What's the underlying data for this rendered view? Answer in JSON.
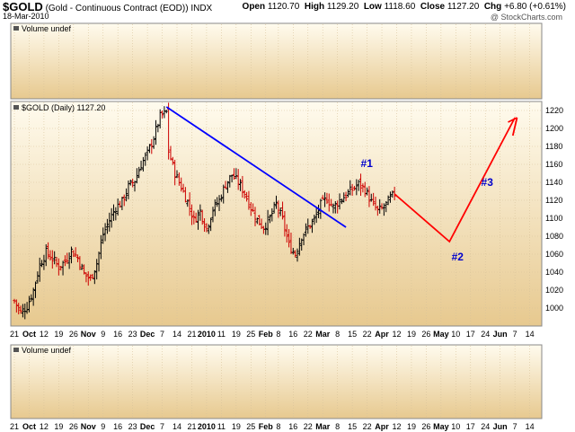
{
  "header": {
    "symbol": "$GOLD",
    "description": "(Gold - Continuous Contract (EOD))",
    "exchange": "INDX",
    "date": "18-Mar-2010",
    "open_label": "Open",
    "open": "1120.70",
    "high_label": "High",
    "high": "1129.20",
    "low_label": "Low",
    "low": "1118.60",
    "close_label": "Close",
    "close": "1127.20",
    "chg_label": "Chg",
    "chg": "+6.80 (+0.61%)",
    "watermark": "@ StockCharts.com"
  },
  "colors": {
    "panel_bg_top": "#fffbee",
    "panel_bg_bottom": "#e7c98f",
    "grid": "#d7c29a",
    "up_bar": "#000000",
    "down_bar": "#cc0000",
    "trendline": "#0000ff",
    "projection": "#ff0000",
    "annotation": "#0000cc"
  },
  "chart_data": {
    "type": "ohlc",
    "panels": [
      {
        "name": "volume-top",
        "label": "Volume undef"
      },
      {
        "name": "price",
        "label": "$GOLD (Daily) 1127.20"
      },
      {
        "name": "volume-bottom",
        "label": "Volume undef"
      }
    ],
    "ylim": [
      980,
      1230
    ],
    "y_ticks": [
      1000,
      1020,
      1040,
      1060,
      1080,
      1100,
      1120,
      1140,
      1160,
      1180,
      1200,
      1220
    ],
    "x_ticks": [
      "21",
      "Oct",
      "12",
      "19",
      "26",
      "Nov",
      "9",
      "16",
      "23",
      "Dec",
      "7",
      "14",
      "21",
      "2010",
      "11",
      "19",
      "25",
      "Feb",
      "8",
      "16",
      "22",
      "Mar",
      "8",
      "15",
      "22",
      "Apr",
      "12",
      "19",
      "26",
      "May",
      "10",
      "17",
      "24",
      "Jun",
      "7",
      "14"
    ],
    "bold_x_ticks": [
      "Oct",
      "Nov",
      "Dec",
      "2010",
      "Feb",
      "Mar",
      "Apr",
      "May",
      "Jun"
    ],
    "price_path": [
      [
        0,
        1008
      ],
      [
        3,
        995
      ],
      [
        6,
        1002
      ],
      [
        9,
        1020
      ],
      [
        12,
        1048
      ],
      [
        15,
        1062
      ],
      [
        18,
        1055
      ],
      [
        21,
        1046
      ],
      [
        24,
        1052
      ],
      [
        27,
        1064
      ],
      [
        30,
        1056
      ],
      [
        33,
        1038
      ],
      [
        36,
        1032
      ],
      [
        39,
        1050
      ],
      [
        42,
        1082
      ],
      [
        45,
        1098
      ],
      [
        48,
        1112
      ],
      [
        51,
        1118
      ],
      [
        54,
        1135
      ],
      [
        57,
        1142
      ],
      [
        60,
        1160
      ],
      [
        63,
        1172
      ],
      [
        66,
        1190
      ],
      [
        69,
        1213
      ],
      [
        72,
        1218
      ],
      [
        73,
        1175
      ],
      [
        76,
        1150
      ],
      [
        79,
        1135
      ],
      [
        82,
        1118
      ],
      [
        85,
        1098
      ],
      [
        88,
        1108
      ],
      [
        91,
        1088
      ],
      [
        94,
        1110
      ],
      [
        97,
        1120
      ],
      [
        100,
        1138
      ],
      [
        103,
        1148
      ],
      [
        106,
        1140
      ],
      [
        109,
        1128
      ],
      [
        112,
        1112
      ],
      [
        115,
        1098
      ],
      [
        118,
        1090
      ],
      [
        121,
        1100
      ],
      [
        124,
        1116
      ],
      [
        127,
        1098
      ],
      [
        130,
        1070
      ],
      [
        133,
        1060
      ],
      [
        136,
        1080
      ],
      [
        139,
        1090
      ],
      [
        142,
        1098
      ],
      [
        145,
        1115
      ],
      [
        148,
        1122
      ],
      [
        151,
        1112
      ],
      [
        154,
        1120
      ],
      [
        157,
        1126
      ],
      [
        160,
        1132
      ],
      [
        163,
        1138
      ],
      [
        166,
        1132
      ],
      [
        169,
        1118
      ],
      [
        172,
        1108
      ],
      [
        175,
        1112
      ],
      [
        178,
        1122
      ],
      [
        180,
        1127
      ]
    ],
    "trendline": {
      "from": [
        72,
        1224
      ],
      "to": [
        157,
        1090
      ]
    },
    "projection": {
      "points": [
        [
          180,
          1127
        ],
        [
          206,
          1074
        ],
        [
          237,
          1212
        ]
      ],
      "arrow_tip": [
        238,
        1210
      ],
      "arrow_back": [
        236,
        1192
      ]
    },
    "annotations": [
      {
        "text": "#1",
        "at": [
          164,
          1157
        ]
      },
      {
        "text": "#2",
        "at": [
          207,
          1053
        ]
      },
      {
        "text": "#3",
        "at": [
          221,
          1136
        ]
      }
    ]
  }
}
